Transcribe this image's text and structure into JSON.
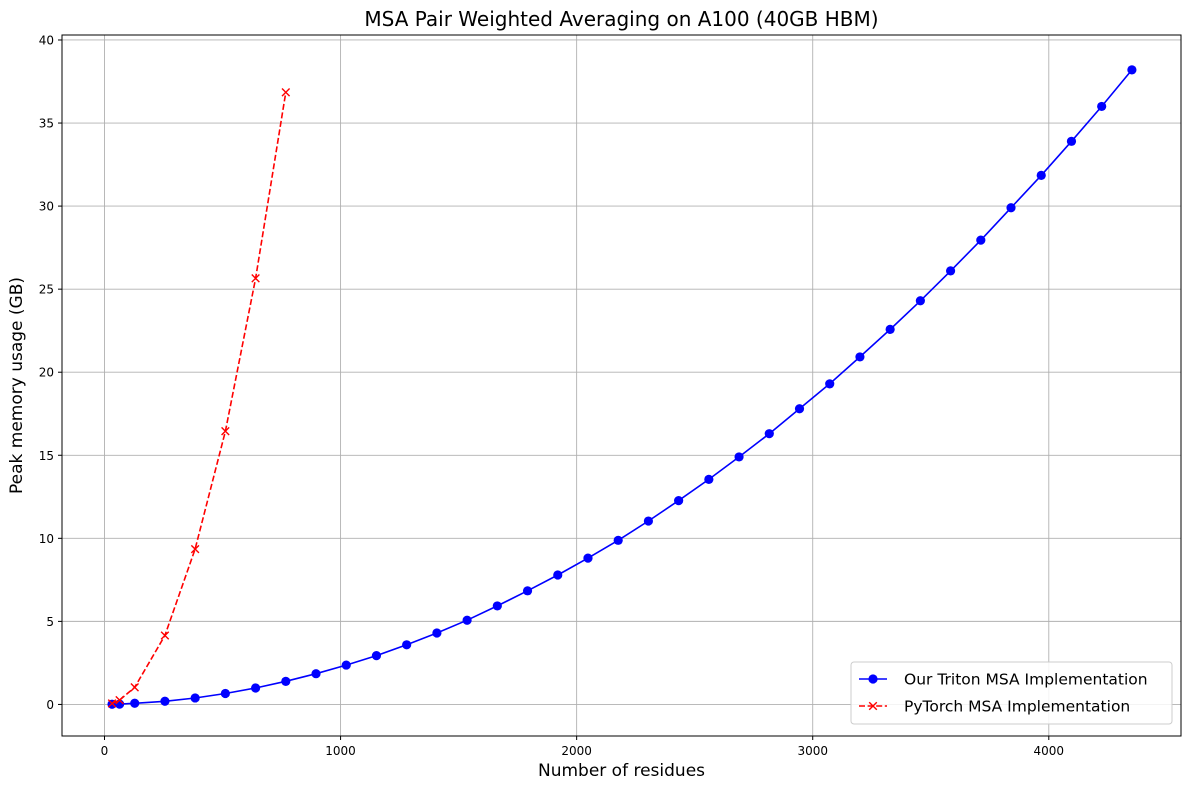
{
  "chart_data": {
    "type": "line",
    "title": "MSA Pair Weighted Averaging on A100 (40GB HBM)",
    "xlabel": "Number of residues",
    "ylabel": "Peak memory usage (GB)",
    "xlim": [
      -180,
      4560
    ],
    "ylim": [
      -1.9,
      40.3
    ],
    "x_ticks": [
      0,
      1000,
      2000,
      3000,
      4000
    ],
    "x_tick_labels": [
      "0",
      "1000",
      "2000",
      "3000",
      "4000"
    ],
    "y_ticks": [
      0,
      5,
      10,
      15,
      20,
      25,
      30,
      35,
      40
    ],
    "y_tick_labels": [
      "0",
      "5",
      "10",
      "15",
      "20",
      "25",
      "30",
      "35",
      "40"
    ],
    "grid": true,
    "legend_position": "bottom-right",
    "series": [
      {
        "name": "Our Triton MSA Implementation",
        "color": "#0000ff",
        "line_style": "solid",
        "marker": "circle",
        "points": [
          [
            32,
            0.01
          ],
          [
            64,
            0.02
          ],
          [
            128,
            0.07
          ],
          [
            256,
            0.19
          ],
          [
            384,
            0.39
          ],
          [
            512,
            0.66
          ],
          [
            640,
            0.99
          ],
          [
            768,
            1.39
          ],
          [
            896,
            1.85
          ],
          [
            1024,
            2.37
          ],
          [
            1152,
            2.94
          ],
          [
            1280,
            3.59
          ],
          [
            1408,
            4.3
          ],
          [
            1536,
            5.07
          ],
          [
            1664,
            5.93
          ],
          [
            1792,
            6.84
          ],
          [
            1920,
            7.79
          ],
          [
            2048,
            8.81
          ],
          [
            2176,
            9.88
          ],
          [
            2304,
            11.04
          ],
          [
            2432,
            12.27
          ],
          [
            2560,
            13.55
          ],
          [
            2688,
            14.9
          ],
          [
            2816,
            16.3
          ],
          [
            2944,
            17.8
          ],
          [
            3072,
            19.3
          ],
          [
            3200,
            20.92
          ],
          [
            3328,
            22.58
          ],
          [
            3456,
            24.3
          ],
          [
            3584,
            26.1
          ],
          [
            3712,
            27.95
          ],
          [
            3840,
            29.9
          ],
          [
            3968,
            31.85
          ],
          [
            4096,
            33.9
          ],
          [
            4224,
            36.0
          ],
          [
            4352,
            38.2
          ]
        ]
      },
      {
        "name": "PyTorch MSA Implementation",
        "color": "#ff0000",
        "line_style": "dashed",
        "marker": "x",
        "points": [
          [
            32,
            0.06
          ],
          [
            64,
            0.26
          ],
          [
            128,
            1.03
          ],
          [
            256,
            4.15
          ],
          [
            384,
            9.35
          ],
          [
            512,
            16.45
          ],
          [
            640,
            25.65
          ],
          [
            768,
            36.85
          ]
        ]
      }
    ]
  }
}
